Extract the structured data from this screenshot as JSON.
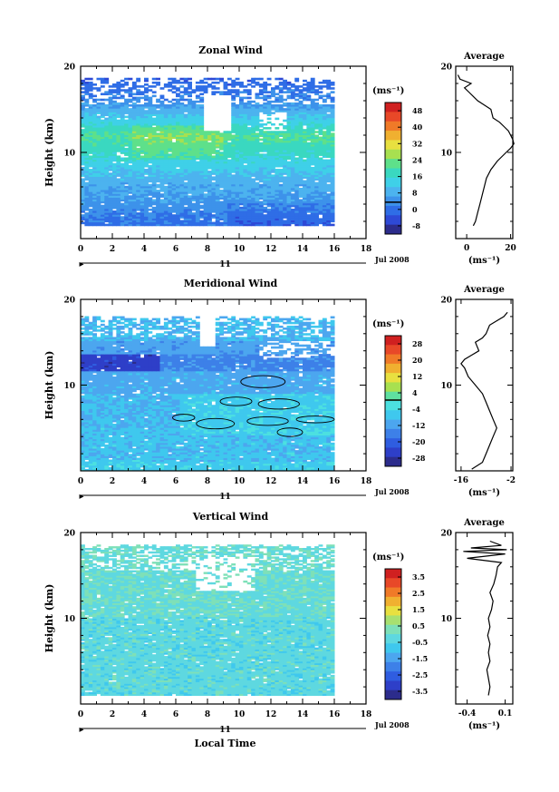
{
  "figure": {
    "x_tick_labels": [
      "0",
      "2",
      "4",
      "6",
      "8",
      "10",
      "12",
      "14",
      "16",
      "18"
    ],
    "date_day": "11",
    "date_label": "Jul 2008",
    "xlabel": "Local Time",
    "ylabel": "Height (km)",
    "y_tick_labels": [
      "10",
      "20"
    ],
    "unit_label": "(ms⁻¹)",
    "avg_title": "Average"
  },
  "chart_data": [
    {
      "id": "zonal",
      "type": "heatmap",
      "title": "Zonal Wind",
      "xlabel": "Local Time",
      "ylabel": "Height (km)",
      "xlim": [
        0,
        18
      ],
      "ylim": [
        0,
        20
      ],
      "data_xmax": 16,
      "data_ymin": 1.5,
      "data_ymax": 18.5,
      "colorbar": {
        "unit": "(ms⁻¹)",
        "ticks": [
          "48",
          "40",
          "32",
          "24",
          "16",
          "8",
          "0",
          "-8"
        ],
        "min": -8,
        "max": 52,
        "colors": [
          "#2c2c8c",
          "#2e49d6",
          "#2f6de6",
          "#3d92ea",
          "#4cb3ef",
          "#3fd0e8",
          "#3ad8c0",
          "#5ee08a",
          "#a8e050",
          "#e8e040",
          "#f0b030",
          "#f07a28",
          "#e84828",
          "#d02020"
        ]
      },
      "profile_rows": [
        {
          "h": 2,
          "u": 3
        },
        {
          "h": 5,
          "u": 6
        },
        {
          "h": 8,
          "u": 10
        },
        {
          "h": 11,
          "u": 17
        },
        {
          "h": 13,
          "u": 22
        },
        {
          "h": 15,
          "u": 13
        },
        {
          "h": 17,
          "u": 5
        },
        {
          "h": 19,
          "u": 1
        }
      ],
      "average": {
        "title": "Average",
        "xlim": [
          -5,
          21
        ],
        "x_ticks": [
          "0",
          "20"
        ],
        "x_tick_values": [
          0,
          20
        ],
        "xlabel": "(ms⁻¹)",
        "height": [
          1.5,
          2,
          3,
          4,
          5,
          6,
          7,
          8,
          9,
          10,
          10.5,
          11,
          11.5,
          12,
          12.5,
          13,
          13.5,
          14,
          15,
          15.5,
          16,
          16.5,
          17,
          17.5,
          18,
          18.5,
          19
        ],
        "value": [
          3,
          4,
          5,
          6,
          7,
          8,
          9,
          11,
          14,
          18,
          20,
          21.5,
          21,
          20,
          19,
          17,
          15,
          12,
          11,
          8,
          5,
          3,
          1,
          -1,
          2,
          -3,
          -4
        ]
      }
    },
    {
      "id": "meridional",
      "type": "heatmap",
      "title": "Meridional Wind",
      "xlabel": "Local Time",
      "ylabel": "Height (km)",
      "xlim": [
        0,
        18
      ],
      "ylim": [
        0,
        20
      ],
      "data_xmax": 16,
      "data_ymin": 0,
      "data_ymax": 18,
      "colorbar": {
        "unit": "(ms⁻¹)",
        "ticks": [
          "28",
          "20",
          "12",
          "4",
          "-4",
          "-12",
          "-20",
          "-28"
        ],
        "min": -32,
        "max": 32,
        "colors": [
          "#2c2c8c",
          "#2e3fc8",
          "#2f5de0",
          "#3d80e8",
          "#4ca6ef",
          "#3fc8ee",
          "#4ce0e0",
          "#5ee0a0",
          "#a8e050",
          "#e8e040",
          "#f0b030",
          "#f07a28",
          "#e84828",
          "#d02020"
        ]
      },
      "profile_rows": [
        {
          "h": 2,
          "v": -6
        },
        {
          "h": 4,
          "v": -8
        },
        {
          "h": 6,
          "v": -7
        },
        {
          "h": 8,
          "v": -10
        },
        {
          "h": 11,
          "v": -13
        },
        {
          "h": 12.5,
          "v": -17
        },
        {
          "h": 14,
          "v": -14
        },
        {
          "h": 17,
          "v": -10
        }
      ],
      "average": {
        "title": "Average",
        "xlim": [
          -17.5,
          -1.5
        ],
        "x_ticks": [
          "-16",
          "-2"
        ],
        "x_tick_values": [
          -16,
          -2
        ],
        "xlabel": "(ms⁻¹)",
        "height": [
          0.2,
          1,
          2,
          3,
          4,
          5,
          6,
          7,
          8,
          9,
          10,
          11,
          12,
          12.5,
          13,
          13.5,
          14,
          15,
          15.5,
          16,
          17,
          17.5,
          18,
          18.5
        ],
        "value": [
          -13,
          -10,
          -9,
          -8,
          -7,
          -6,
          -7,
          -8,
          -9,
          -10,
          -12,
          -14,
          -15,
          -16,
          -15,
          -13,
          -11,
          -12,
          -10,
          -9,
          -8,
          -6,
          -4,
          -3
        ]
      }
    },
    {
      "id": "vertical",
      "type": "heatmap",
      "title": "Vertical Wind",
      "xlabel": "Local Time",
      "ylabel": "Height (km)",
      "xlim": [
        0,
        18
      ],
      "ylim": [
        0,
        20
      ],
      "data_xmax": 16,
      "data_ymin": 1,
      "data_ymax": 18.5,
      "colorbar": {
        "unit": "(ms⁻¹)",
        "ticks": [
          "3.5",
          "2.5",
          "1.5",
          "0.5",
          "-0.5",
          "-1.5",
          "-2.5",
          "-3.5"
        ],
        "min": -4,
        "max": 4,
        "colors": [
          "#2c2c8c",
          "#2e3fc8",
          "#2f5de0",
          "#3d80e8",
          "#4ca6ef",
          "#3fc8ee",
          "#5ed8e0",
          "#7ee0b8",
          "#a8e070",
          "#e8e040",
          "#f0b030",
          "#f07a28",
          "#e84828",
          "#d02020"
        ]
      },
      "profile_rows": [],
      "average": {
        "title": "Average",
        "xlim": [
          -0.55,
          0.2
        ],
        "x_ticks": [
          "-0.4",
          "0.1"
        ],
        "x_tick_values": [
          -0.4,
          0.1
        ],
        "xlabel": "(ms⁻¹)",
        "height": [
          1,
          2,
          3,
          4,
          5,
          6,
          7,
          8,
          9,
          10,
          11,
          12,
          13,
          14,
          15,
          16,
          16.5,
          17,
          17.5,
          17.8,
          18,
          18.2,
          18.5,
          19
        ],
        "value": [
          -0.12,
          -0.1,
          -0.12,
          -0.14,
          -0.1,
          -0.12,
          -0.1,
          -0.13,
          -0.1,
          -0.12,
          -0.08,
          -0.06,
          -0.1,
          -0.05,
          -0.02,
          0,
          0.05,
          -0.4,
          0.1,
          -0.45,
          0.12,
          -0.35,
          0.05,
          -0.1
        ]
      }
    }
  ]
}
